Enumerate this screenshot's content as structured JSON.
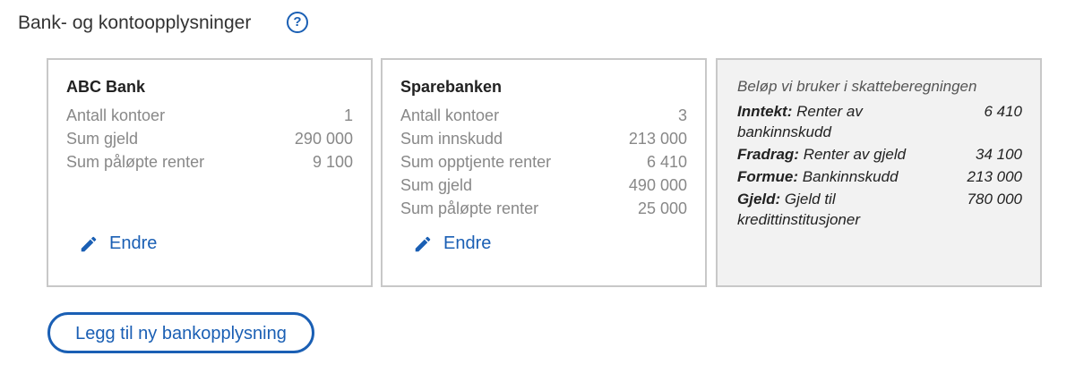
{
  "header": {
    "title": "Bank- og kontoopplysninger",
    "help_icon": "?"
  },
  "banks": [
    {
      "name": "ABC Bank",
      "rows": [
        [
          "Antall kontoer",
          "1"
        ],
        [
          "Sum gjeld",
          "290 000"
        ],
        [
          "Sum påløpte renter",
          "9 100"
        ]
      ],
      "edit_label": "Endre"
    },
    {
      "name": "Sparebanken",
      "rows": [
        [
          "Antall kontoer",
          "3"
        ],
        [
          "Sum innskudd",
          "213 000"
        ],
        [
          "Sum opptjente renter",
          "6 410"
        ],
        [
          "Sum gjeld",
          "490 000"
        ],
        [
          "Sum påløpte renter",
          "25 000"
        ]
      ],
      "edit_label": "Endre"
    }
  ],
  "summary": {
    "caption": "Beløp vi bruker i skatteberegningen",
    "rows": [
      {
        "key": "Inntekt:",
        "text": "Renter av bankinnskudd",
        "value": "6 410"
      },
      {
        "key": "Fradrag:",
        "text": "Renter av gjeld",
        "value": "34 100"
      },
      {
        "key": "Formue:",
        "text": "Bankinnskudd",
        "value": "213 000"
      },
      {
        "key": "Gjeld:",
        "text": "Gjeld til kredittinstitusjoner",
        "value": "780 000"
      }
    ]
  },
  "add_button": "Legg til ny bankopplysning"
}
